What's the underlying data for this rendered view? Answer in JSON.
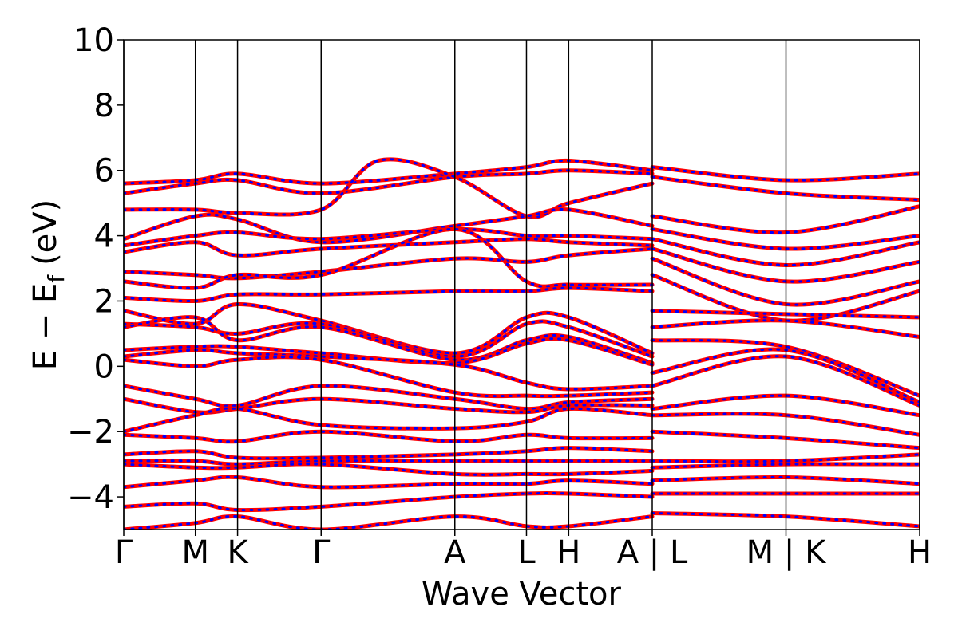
{
  "chart_data": {
    "type": "line",
    "xlabel": "Wave Vector",
    "ylabel": "E − E",
    "ylabel_sub": "f",
    "ylabel_unit": "(eV)",
    "ylim": [
      -5,
      10
    ],
    "yticks": [
      -4,
      -2,
      0,
      2,
      4,
      6,
      8,
      10
    ],
    "ytick_labels": [
      "−4",
      "−2",
      "0",
      "2",
      "4",
      "6",
      "8",
      "10"
    ],
    "xlim": [
      0,
      10
    ],
    "kpoints": [
      {
        "x": 0.0,
        "label": "Γ"
      },
      {
        "x": 0.9,
        "label": "M"
      },
      {
        "x": 1.43,
        "label": "K"
      },
      {
        "x": 2.48,
        "label": "Γ"
      },
      {
        "x": 4.16,
        "label": "A"
      },
      {
        "x": 5.06,
        "label": "L"
      },
      {
        "x": 5.59,
        "label": "H"
      },
      {
        "x": 6.64,
        "label": "A | L"
      },
      {
        "x": 8.32,
        "label": "M | K"
      },
      {
        "x": 10.0,
        "label": "H"
      }
    ],
    "grid": false,
    "series_styles": [
      {
        "name": "",
        "color": "#ff0000",
        "style": "solid"
      },
      {
        "name": "",
        "color": "#0000ff",
        "style": "dotted"
      }
    ],
    "bands": [
      {
        "x": [
          0,
          0.9,
          1.43,
          2.48,
          4.16,
          5.06,
          5.59,
          6.64
        ],
        "y": [
          5.6,
          5.7,
          5.9,
          5.6,
          5.9,
          6.1,
          6.3,
          6.0
        ]
      },
      {
        "x": [
          0,
          0.9,
          1.43,
          2.48,
          4.16,
          5.06,
          5.59,
          6.64
        ],
        "y": [
          5.3,
          5.6,
          5.7,
          5.3,
          5.8,
          5.9,
          6.0,
          5.9
        ]
      },
      {
        "x": [
          0,
          0.9,
          1.43,
          2.48,
          3.2,
          4.16,
          5.06,
          5.59,
          6.64
        ],
        "y": [
          4.8,
          4.8,
          4.7,
          4.8,
          6.3,
          5.8,
          4.6,
          5.0,
          5.6
        ]
      },
      {
        "x": [
          0,
          0.9,
          1.43,
          2.48,
          4.16,
          5.06,
          5.59,
          6.64
        ],
        "y": [
          3.9,
          4.6,
          4.5,
          3.8,
          4.3,
          4.6,
          4.8,
          4.3
        ]
      },
      {
        "x": [
          0,
          0.9,
          1.43,
          2.48,
          4.16,
          5.06,
          5.59,
          6.64
        ],
        "y": [
          3.7,
          4.0,
          4.1,
          3.9,
          4.2,
          4.0,
          4.0,
          3.9
        ]
      },
      {
        "x": [
          0,
          0.9,
          1.43,
          2.48,
          4.16,
          5.06,
          5.59,
          6.64
        ],
        "y": [
          3.5,
          3.8,
          3.4,
          3.6,
          3.8,
          3.9,
          3.8,
          3.7
        ]
      },
      {
        "x": [
          0,
          0.9,
          1.43,
          2.48,
          4.16,
          5.06,
          5.59,
          6.64
        ],
        "y": [
          2.9,
          2.8,
          2.7,
          2.9,
          3.3,
          3.2,
          3.4,
          3.6
        ]
      },
      {
        "x": [
          0,
          0.9,
          1.43,
          2.48,
          4.16,
          5.06,
          5.59,
          6.64
        ],
        "y": [
          2.6,
          2.4,
          2.8,
          2.8,
          4.2,
          2.6,
          2.5,
          2.5
        ]
      },
      {
        "x": [
          0,
          0.9,
          1.43,
          2.48,
          4.16,
          5.06,
          5.59,
          6.64
        ],
        "y": [
          2.1,
          2.0,
          2.2,
          2.2,
          2.3,
          2.3,
          2.4,
          2.3
        ]
      },
      {
        "x": [
          0,
          0.9,
          1.43,
          2.48,
          4.16,
          5.06,
          5.59,
          6.64
        ],
        "y": [
          1.7,
          1.3,
          1.9,
          1.4,
          0.4,
          1.5,
          1.5,
          0.4
        ]
      },
      {
        "x": [
          0,
          0.9,
          1.43,
          2.48,
          4.16,
          5.06,
          5.59,
          6.64
        ],
        "y": [
          1.3,
          1.2,
          1.0,
          1.3,
          0.3,
          1.3,
          1.2,
          0.3
        ]
      },
      {
        "x": [
          0,
          0.9,
          1.43,
          2.48,
          4.16,
          5.06,
          5.59,
          6.64
        ],
        "y": [
          1.2,
          1.5,
          0.8,
          1.2,
          0.2,
          0.8,
          0.9,
          0.1
        ]
      },
      {
        "x": [
          0,
          0.9,
          1.43,
          2.48,
          4.16,
          5.06,
          5.59,
          6.64
        ],
        "y": [
          0.5,
          0.6,
          0.6,
          0.4,
          0.1,
          0.7,
          0.8,
          0.05
        ]
      },
      {
        "x": [
          0,
          0.9,
          1.43,
          2.48,
          4.16,
          5.06,
          5.59,
          6.64
        ],
        "y": [
          0.3,
          0.5,
          0.4,
          0.3,
          0.05,
          -0.5,
          -0.7,
          -0.6
        ]
      },
      {
        "x": [
          0,
          0.9,
          1.43,
          2.48,
          4.16,
          5.06,
          5.59,
          6.64
        ],
        "y": [
          0.2,
          0.0,
          0.2,
          0.2,
          -0.8,
          -0.9,
          -0.9,
          -0.8
        ]
      },
      {
        "x": [
          0,
          0.9,
          1.43,
          2.48,
          4.16,
          5.06,
          5.59,
          6.64
        ],
        "y": [
          -0.6,
          -1.0,
          -1.2,
          -0.6,
          -1.0,
          -1.3,
          -1.1,
          -1.0
        ]
      },
      {
        "x": [
          0,
          0.9,
          1.43,
          2.48,
          4.16,
          5.06,
          5.59,
          6.64
        ],
        "y": [
          -1.0,
          -1.4,
          -1.3,
          -1.0,
          -1.3,
          -1.4,
          -1.2,
          -1.2
        ]
      },
      {
        "x": [
          0,
          0.9,
          1.43,
          2.48,
          4.16,
          5.06,
          5.59,
          6.64
        ],
        "y": [
          -2.0,
          -1.5,
          -1.3,
          -1.8,
          -1.9,
          -1.7,
          -1.3,
          -1.5
        ]
      },
      {
        "x": [
          0,
          0.9,
          1.43,
          2.48,
          4.16,
          5.06,
          5.59,
          6.64
        ],
        "y": [
          -2.1,
          -2.2,
          -2.3,
          -2.0,
          -2.3,
          -2.1,
          -2.2,
          -2.2
        ]
      },
      {
        "x": [
          0,
          0.9,
          1.43,
          2.48,
          4.16,
          5.06,
          5.59,
          6.64
        ],
        "y": [
          -2.7,
          -2.6,
          -2.8,
          -2.8,
          -2.7,
          -2.6,
          -2.5,
          -2.6
        ]
      },
      {
        "x": [
          0,
          0.9,
          1.43,
          2.48,
          4.16,
          5.06,
          5.59,
          6.64
        ],
        "y": [
          -2.9,
          -2.9,
          -3.0,
          -2.9,
          -2.9,
          -2.9,
          -2.9,
          -2.9
        ]
      },
      {
        "x": [
          0,
          0.9,
          1.43,
          2.48,
          4.16,
          5.06,
          5.59,
          6.64
        ],
        "y": [
          -3.0,
          -3.1,
          -3.1,
          -3.0,
          -3.3,
          -3.3,
          -3.3,
          -3.2
        ]
      },
      {
        "x": [
          0,
          0.9,
          1.43,
          2.48,
          4.16,
          5.06,
          5.59,
          6.64
        ],
        "y": [
          -3.7,
          -3.5,
          -3.4,
          -3.7,
          -3.6,
          -3.6,
          -3.5,
          -3.6
        ]
      },
      {
        "x": [
          0,
          0.9,
          1.43,
          2.48,
          4.16,
          5.06,
          5.59,
          6.64
        ],
        "y": [
          -4.3,
          -4.2,
          -4.4,
          -4.3,
          -4.0,
          -3.9,
          -3.9,
          -4.0
        ]
      },
      {
        "x": [
          0,
          0.9,
          1.43,
          2.48,
          4.16,
          5.06,
          5.59,
          6.64
        ],
        "y": [
          -5.0,
          -4.8,
          -4.6,
          -5.0,
          -4.6,
          -4.9,
          -4.9,
          -4.6
        ]
      },
      {
        "x": [
          6.64,
          8.32,
          10.0
        ],
        "y": [
          6.1,
          5.7,
          5.9
        ]
      },
      {
        "x": [
          6.64,
          8.32,
          10.0
        ],
        "y": [
          5.8,
          5.3,
          5.1
        ]
      },
      {
        "x": [
          6.64,
          8.32,
          10.0
        ],
        "y": [
          4.6,
          4.1,
          4.9
        ]
      },
      {
        "x": [
          6.64,
          8.32,
          10.0
        ],
        "y": [
          4.2,
          3.6,
          4.0
        ]
      },
      {
        "x": [
          6.64,
          8.32,
          10.0
        ],
        "y": [
          3.9,
          3.1,
          3.8
        ]
      },
      {
        "x": [
          6.64,
          8.32,
          10.0
        ],
        "y": [
          3.6,
          2.6,
          3.2
        ]
      },
      {
        "x": [
          6.64,
          8.32,
          10.0
        ],
        "y": [
          3.3,
          1.9,
          2.6
        ]
      },
      {
        "x": [
          6.64,
          8.32,
          10.0
        ],
        "y": [
          2.8,
          1.4,
          2.3
        ]
      },
      {
        "x": [
          6.64,
          8.32,
          10.0
        ],
        "y": [
          1.7,
          1.6,
          1.5
        ]
      },
      {
        "x": [
          6.64,
          8.32,
          10.0
        ],
        "y": [
          1.2,
          1.4,
          0.9
        ]
      },
      {
        "x": [
          6.64,
          8.32,
          10.0
        ],
        "y": [
          0.8,
          0.6,
          -0.9
        ]
      },
      {
        "x": [
          6.64,
          8.32,
          10.0
        ],
        "y": [
          -0.2,
          0.5,
          -1.1
        ]
      },
      {
        "x": [
          6.64,
          8.32,
          10.0
        ],
        "y": [
          -0.6,
          0.3,
          -1.2
        ]
      },
      {
        "x": [
          6.64,
          8.32,
          10.0
        ],
        "y": [
          -1.3,
          -0.9,
          -1.5
        ]
      },
      {
        "x": [
          6.64,
          8.32,
          10.0
        ],
        "y": [
          -1.5,
          -1.5,
          -2.1
        ]
      },
      {
        "x": [
          6.64,
          8.32,
          10.0
        ],
        "y": [
          -2.0,
          -2.2,
          -2.5
        ]
      },
      {
        "x": [
          6.64,
          8.32,
          10.0
        ],
        "y": [
          -2.9,
          -2.9,
          -2.7
        ]
      },
      {
        "x": [
          6.64,
          8.32,
          10.0
        ],
        "y": [
          -3.1,
          -3.0,
          -3.0
        ]
      },
      {
        "x": [
          6.64,
          8.32,
          10.0
        ],
        "y": [
          -3.5,
          -3.4,
          -3.6
        ]
      },
      {
        "x": [
          6.64,
          8.32,
          10.0
        ],
        "y": [
          -3.9,
          -3.9,
          -3.9
        ]
      },
      {
        "x": [
          6.64,
          8.32,
          10.0
        ],
        "y": [
          -4.5,
          -4.6,
          -4.9
        ]
      }
    ]
  }
}
